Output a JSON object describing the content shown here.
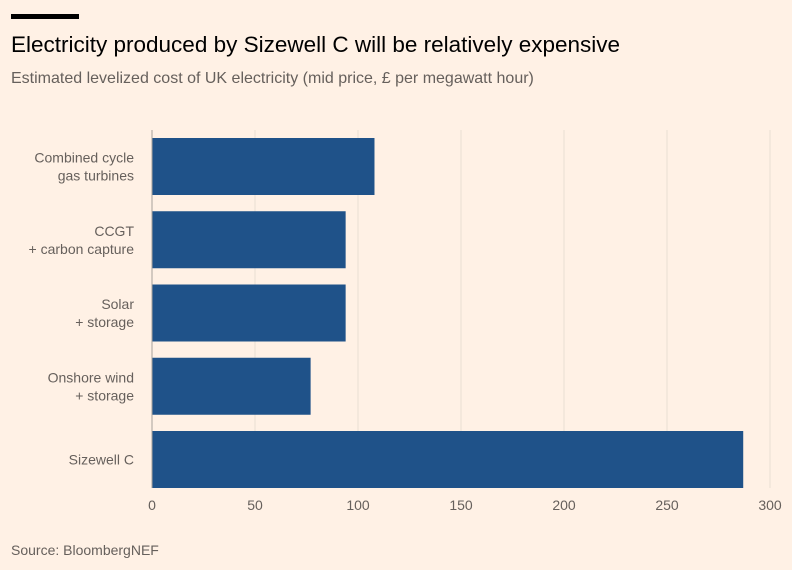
{
  "title": "Electricity produced by Sizewell C will be relatively expensive",
  "subtitle": "Estimated levelized cost of UK electricity (mid price, £ per megawatt hour)",
  "source": "Source: BloombergNEF",
  "colors": {
    "background": "#fff1e5",
    "bar": "#1f5289",
    "gridline": "#eadfd4"
  },
  "chart_data": {
    "type": "bar",
    "orientation": "horizontal",
    "categories": [
      [
        "Combined cycle",
        "gas turbines"
      ],
      [
        "CCGT",
        "+ carbon capture"
      ],
      [
        "Solar",
        "+ storage"
      ],
      [
        "Onshore wind",
        "+ storage"
      ],
      [
        "Sizewell C"
      ]
    ],
    "values": [
      108,
      94,
      94,
      77,
      287
    ],
    "xlim": [
      0,
      300
    ],
    "xticks": [
      0,
      50,
      100,
      150,
      200,
      250,
      300
    ],
    "grid": true
  }
}
